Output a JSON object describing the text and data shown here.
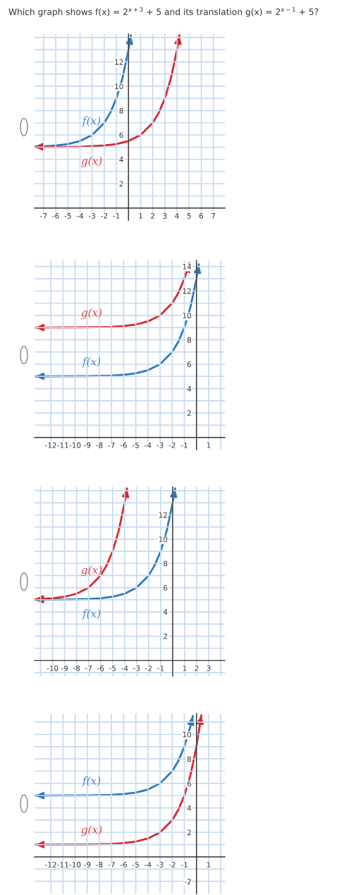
{
  "chart_data": [
    {
      "type": "line",
      "title": "Which graph shows f(x) = 2$^{x+3}$ + 5 and its translation g(x) = 2$^{x−1}$ + 5?",
      "series": [
        {
          "name": "f(x)",
          "color": "#2b78c2",
          "x": [
            -7.75,
            -7,
            -6,
            -5,
            -4,
            -3,
            -2,
            -1.5,
            -1,
            -0.5,
            0,
            0.2
          ],
          "values": [
            5.04,
            5.06,
            5.13,
            5.25,
            5.5,
            6,
            7,
            7.83,
            9,
            10.66,
            13,
            14.19
          ]
        },
        {
          "name": "g(x)",
          "color": "#d8262b",
          "x": [
            -7.75,
            -4,
            -2,
            -1,
            0,
            1,
            2,
            2.5,
            3,
            3.5,
            4,
            4.2
          ],
          "values": [
            5.0,
            5.03,
            5.13,
            5.25,
            5.5,
            6,
            7,
            7.83,
            9,
            10.66,
            13,
            14.19
          ]
        }
      ],
      "xlim": [
        -7.75,
        7.95
      ],
      "ylim": [
        -1,
        14.3
      ],
      "xticks": [
        -7,
        -6,
        -5,
        -4,
        -3,
        -2,
        -1,
        {
          "value": 0,
          "label": null
        },
        1,
        2,
        3,
        4,
        5,
        6,
        7
      ],
      "yticks": [
        {
          "value": 1,
          "label": null
        },
        2,
        {
          "value": 3,
          "label": null
        },
        4,
        {
          "value": 5,
          "label": null
        },
        6,
        {
          "value": 7,
          "label": null
        },
        8,
        {
          "value": 9,
          "label": null
        },
        10,
        {
          "value": 11,
          "label": null
        },
        12,
        {
          "value": 13,
          "label": null
        },
        {
          "value": 14,
          "label": null
        }
      ],
      "grid": true
    },
    {
      "type": "line",
      "series": [
        {
          "name": "f(x)",
          "color": "#2b78c2",
          "x": [
            -13.3,
            -9,
            -7,
            -6,
            -5,
            -4,
            -3,
            -2,
            -1.5,
            -1,
            -0.5,
            0,
            0.2
          ],
          "values": [
            5.0,
            5.02,
            5.06,
            5.13,
            5.25,
            5.5,
            6,
            7,
            7.83,
            9,
            10.66,
            13,
            14.19
          ]
        },
        {
          "name": "g(x)",
          "color": "#d8262b",
          "x": [
            -13.3,
            -9,
            -7,
            -6,
            -5,
            -4,
            -3,
            -2,
            -1.5,
            -1,
            -0.7,
            -0.6
          ],
          "values": [
            9.0,
            9.02,
            9.06,
            9.13,
            9.25,
            9.5,
            10,
            11,
            11.83,
            13,
            13.92,
            14.28
          ]
        }
      ],
      "xlim": [
        -13.34,
        2.34
      ],
      "ylim": [
        -1,
        14.5
      ],
      "xticks": [
        -12,
        -11,
        -10,
        -9,
        -8,
        -7,
        -6,
        -5,
        -4,
        -3,
        -2,
        -1,
        {
          "value": 0,
          "label": null
        },
        1,
        {
          "value": 2,
          "label": null
        }
      ],
      "yticks": [
        {
          "value": 1,
          "label": null
        },
        2,
        {
          "value": 3,
          "label": null
        },
        4,
        {
          "value": 5,
          "label": null
        },
        6,
        {
          "value": 7,
          "label": null
        },
        8,
        {
          "value": 9,
          "label": null
        },
        10,
        {
          "value": 11,
          "label": null
        },
        12,
        {
          "value": 13,
          "label": null
        },
        14
      ],
      "grid": true
    },
    {
      "type": "line",
      "series": [
        {
          "name": "f(x)",
          "color": "#2b78c2",
          "x": [
            -11.5,
            -9,
            -7,
            -6,
            -5,
            -4,
            -3,
            -2,
            -1.5,
            -1,
            -0.5,
            0,
            0.2
          ],
          "values": [
            5.0,
            5.02,
            5.06,
            5.13,
            5.25,
            5.5,
            6,
            7,
            7.83,
            9,
            10.66,
            13,
            14.19
          ]
        },
        {
          "name": "g(x)",
          "color": "#d8262b",
          "x": [
            -11.5,
            -10,
            -9,
            -8,
            -7,
            -6,
            -5.5,
            -5,
            -4.5,
            -4,
            -3.8
          ],
          "values": [
            5.04,
            5.13,
            5.25,
            5.5,
            6,
            7,
            7.83,
            9,
            10.66,
            13,
            14.19
          ]
        }
      ],
      "xlim": [
        -11.5,
        4.35
      ],
      "ylim": [
        -1.3,
        14.3
      ],
      "xticks": [
        {
          "value": -11,
          "label": null
        },
        -10,
        -9,
        -8,
        -7,
        -6,
        -5,
        -4,
        -3,
        -2,
        -1,
        {
          "value": 0,
          "label": null
        },
        1,
        2,
        3,
        {
          "value": 4,
          "label": null
        }
      ],
      "yticks": [
        {
          "value": -1,
          "label": null
        },
        {
          "value": 1,
          "label": null
        },
        2,
        {
          "value": 3,
          "label": null
        },
        4,
        {
          "value": 5,
          "label": null
        },
        6,
        {
          "value": 7,
          "label": null
        },
        8,
        {
          "value": 9,
          "label": null
        },
        10,
        {
          "value": 11,
          "label": null
        },
        12,
        {
          "value": 13,
          "label": null
        },
        {
          "value": 14,
          "label": null
        }
      ],
      "grid": true
    },
    {
      "type": "line",
      "series": [
        {
          "name": "f(x)",
          "color": "#2b78c2",
          "x": [
            -13.3,
            -9,
            -7,
            -6,
            -5,
            -4,
            -3,
            -2,
            -1.5,
            -1,
            -0.5,
            -0.3
          ],
          "values": [
            5.0,
            5.02,
            5.06,
            5.13,
            5.25,
            5.5,
            6,
            7,
            7.83,
            9,
            10.66,
            11.5
          ]
        },
        {
          "name": "g(x)",
          "color": "#d8262b",
          "x": [
            -13.3,
            -9,
            -7,
            -6,
            -5,
            -4,
            -3,
            -2,
            -1.5,
            -1,
            -0.5,
            0,
            0.4
          ],
          "values": [
            1.0,
            1.02,
            1.06,
            1.13,
            1.25,
            1.5,
            2,
            3,
            3.83,
            5,
            6.66,
            9,
            11.56
          ]
        }
      ],
      "xlim": [
        -13.34,
        2.34
      ],
      "ylim": [
        -3,
        11.7
      ],
      "xticks": [
        -12,
        -11,
        -10,
        -9,
        -8,
        -7,
        -6,
        -5,
        -4,
        -3,
        -2,
        -1,
        {
          "value": 0,
          "label": null
        },
        1,
        {
          "value": 2,
          "label": null
        }
      ],
      "yticks": [
        -2,
        {
          "value": -1,
          "label": null
        },
        {
          "value": 1,
          "label": null
        },
        2,
        {
          "value": 3,
          "label": null
        },
        4,
        {
          "value": 5,
          "label": null
        },
        6,
        {
          "value": 7,
          "label": null
        },
        8,
        {
          "value": 9,
          "label": null
        },
        10,
        {
          "value": 11,
          "label": null
        }
      ],
      "grid": true
    }
  ]
}
